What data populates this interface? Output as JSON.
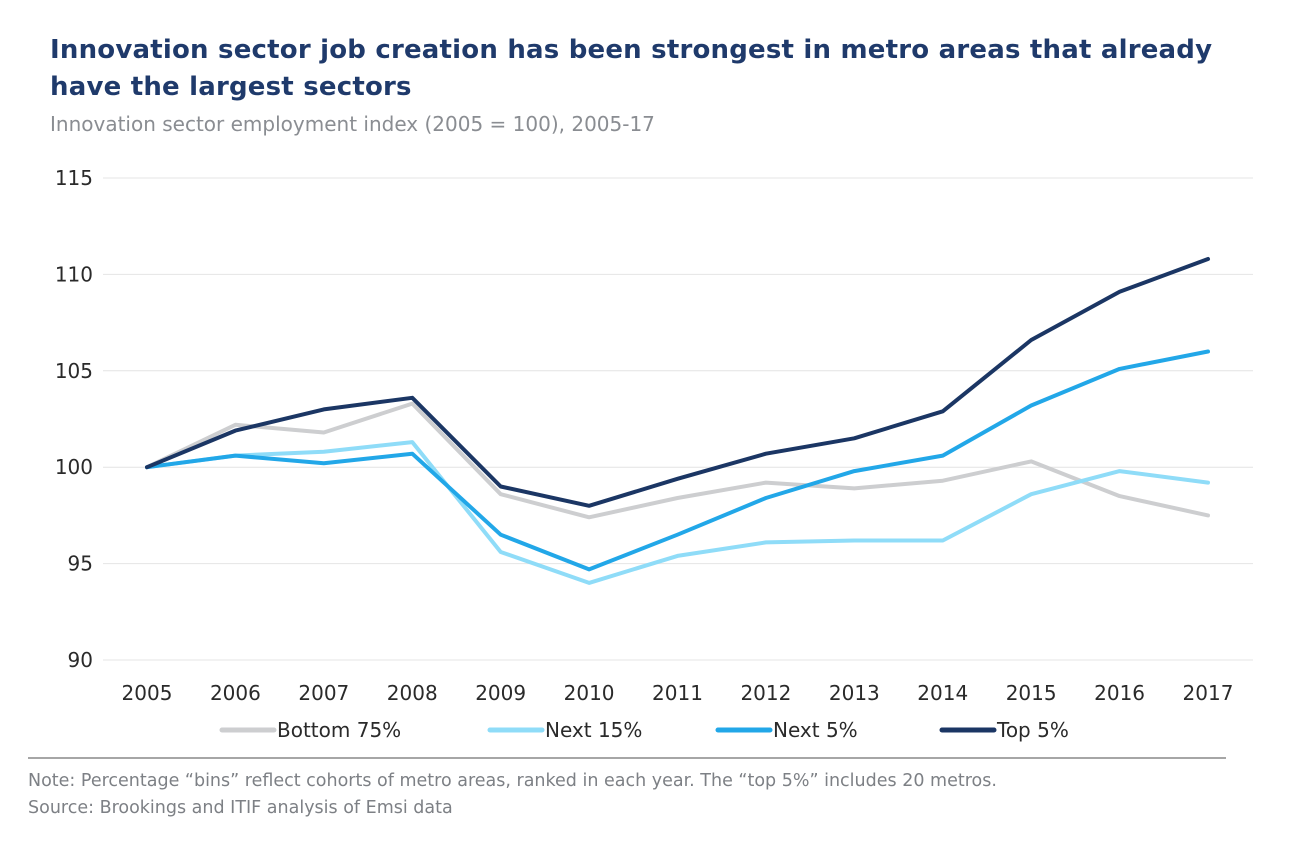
{
  "title": "Innovation sector job creation has been strongest in metro areas that already have the largest sectors",
  "subtitle": "Innovation sector employment index (2005 = 100), 2005-17",
  "note": "Note: Percentage “bins” reflect cohorts of metro areas, ranked in each year. The “top 5%” includes 20 metros.",
  "source": "Source: Brookings and ITIF analysis of Emsi data",
  "chart_data": {
    "type": "line",
    "title": "Innovation sector job creation has been strongest in metro areas that already have the largest sectors",
    "subtitle": "Innovation sector employment index (2005 = 100), 2005-17",
    "xlabel": "",
    "ylabel": "",
    "x": [
      "2005",
      "2006",
      "2007",
      "2008",
      "2009",
      "2010",
      "2011",
      "2012",
      "2013",
      "2014",
      "2015",
      "2016",
      "2017"
    ],
    "ylim": [
      90,
      115
    ],
    "yticks": [
      90,
      95,
      100,
      105,
      110,
      115
    ],
    "grid": true,
    "legend_position": "bottom",
    "series": [
      {
        "name": "Bottom 75%",
        "color": "#cdced0",
        "values": [
          100,
          102.2,
          101.8,
          103.3,
          98.6,
          97.4,
          98.4,
          99.2,
          98.9,
          99.3,
          100.3,
          98.5,
          97.5
        ]
      },
      {
        "name": "Next 15%",
        "color": "#8fdcf8",
        "values": [
          100,
          100.6,
          100.8,
          101.3,
          95.6,
          94.0,
          95.4,
          96.1,
          96.2,
          96.2,
          98.6,
          99.8,
          99.2
        ]
      },
      {
        "name": "Next 5%",
        "color": "#22a7e8",
        "values": [
          100,
          100.6,
          100.2,
          100.7,
          96.5,
          94.7,
          96.5,
          98.4,
          99.8,
          100.6,
          103.2,
          105.1,
          106.0
        ]
      },
      {
        "name": "Top 5%",
        "color": "#1b3664",
        "values": [
          100,
          101.9,
          103.0,
          103.6,
          99.0,
          98.0,
          99.4,
          100.7,
          101.5,
          102.9,
          106.6,
          109.1,
          110.8
        ]
      }
    ]
  }
}
